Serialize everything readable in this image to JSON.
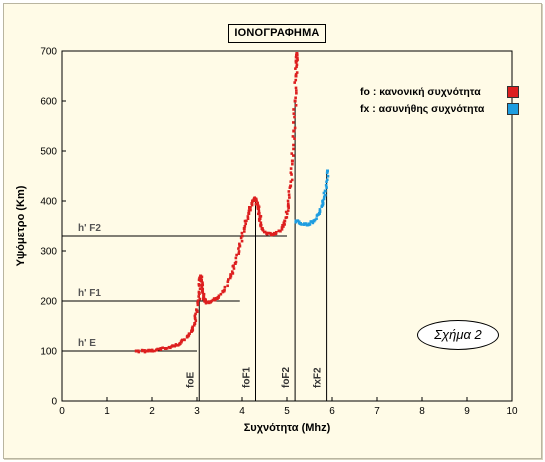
{
  "chart_data": {
    "type": "scatter",
    "title": "ΙΟΝΟΓΡΑΦΗΜΑ",
    "xlabel": "Συχνότητα (Mhz)",
    "ylabel": "Υψόμετρο (Km)",
    "xlim": [
      0,
      10
    ],
    "ylim": [
      0,
      700
    ],
    "x_ticks": [
      0,
      1,
      2,
      3,
      4,
      5,
      6,
      7,
      8,
      9,
      10
    ],
    "y_ticks": [
      0,
      100,
      200,
      300,
      400,
      500,
      600,
      700
    ],
    "grid": false,
    "legend_placement": "top-right",
    "series": [
      {
        "name": "fo : κανονική συχνότητα",
        "color": "#dd1f1f",
        "x": [
          1.65,
          1.9,
          2.1,
          2.3,
          2.5,
          2.65,
          2.8,
          2.88,
          2.95,
          3.0,
          3.05,
          3.08,
          3.1,
          3.12,
          3.15,
          3.2,
          3.3,
          3.45,
          3.6,
          3.75,
          3.85,
          3.95,
          4.05,
          4.15,
          4.22,
          4.28,
          4.32,
          4.36,
          4.4,
          4.45,
          4.55,
          4.7,
          4.85,
          4.95,
          5.03,
          5.08,
          5.12,
          5.15,
          5.18,
          5.2,
          5.21,
          5.22
        ],
        "y": [
          100,
          100,
          102,
          105,
          110,
          118,
          130,
          140,
          155,
          180,
          215,
          250,
          240,
          220,
          205,
          198,
          198,
          205,
          220,
          250,
          275,
          310,
          345,
          375,
          395,
          405,
          400,
          385,
          365,
          345,
          335,
          333,
          340,
          360,
          390,
          430,
          480,
          540,
          600,
          650,
          680,
          695
        ]
      },
      {
        "name": "fx : ασυνήθης συχνότητα",
        "color": "#1e9de0",
        "x": [
          5.2,
          5.3,
          5.45,
          5.6,
          5.72,
          5.8,
          5.85,
          5.9
        ],
        "y": [
          360,
          355,
          352,
          360,
          375,
          395,
          420,
          460
        ]
      }
    ],
    "reference_lines": [
      {
        "label": "h' E",
        "y": 100,
        "x_end": 3.0
      },
      {
        "label": "h' F1",
        "y": 200,
        "x_end": 3.95
      },
      {
        "label": "h' F2",
        "y": 330,
        "x_end": 5.0
      }
    ],
    "critical_frequencies": [
      {
        "label": "foE",
        "x": 3.05
      },
      {
        "label": "foF1",
        "x": 4.3
      },
      {
        "label": "foF2",
        "x": 5.18
      },
      {
        "label": "fxF2",
        "x": 5.88
      }
    ],
    "annotation": "Σχήμα 2"
  }
}
